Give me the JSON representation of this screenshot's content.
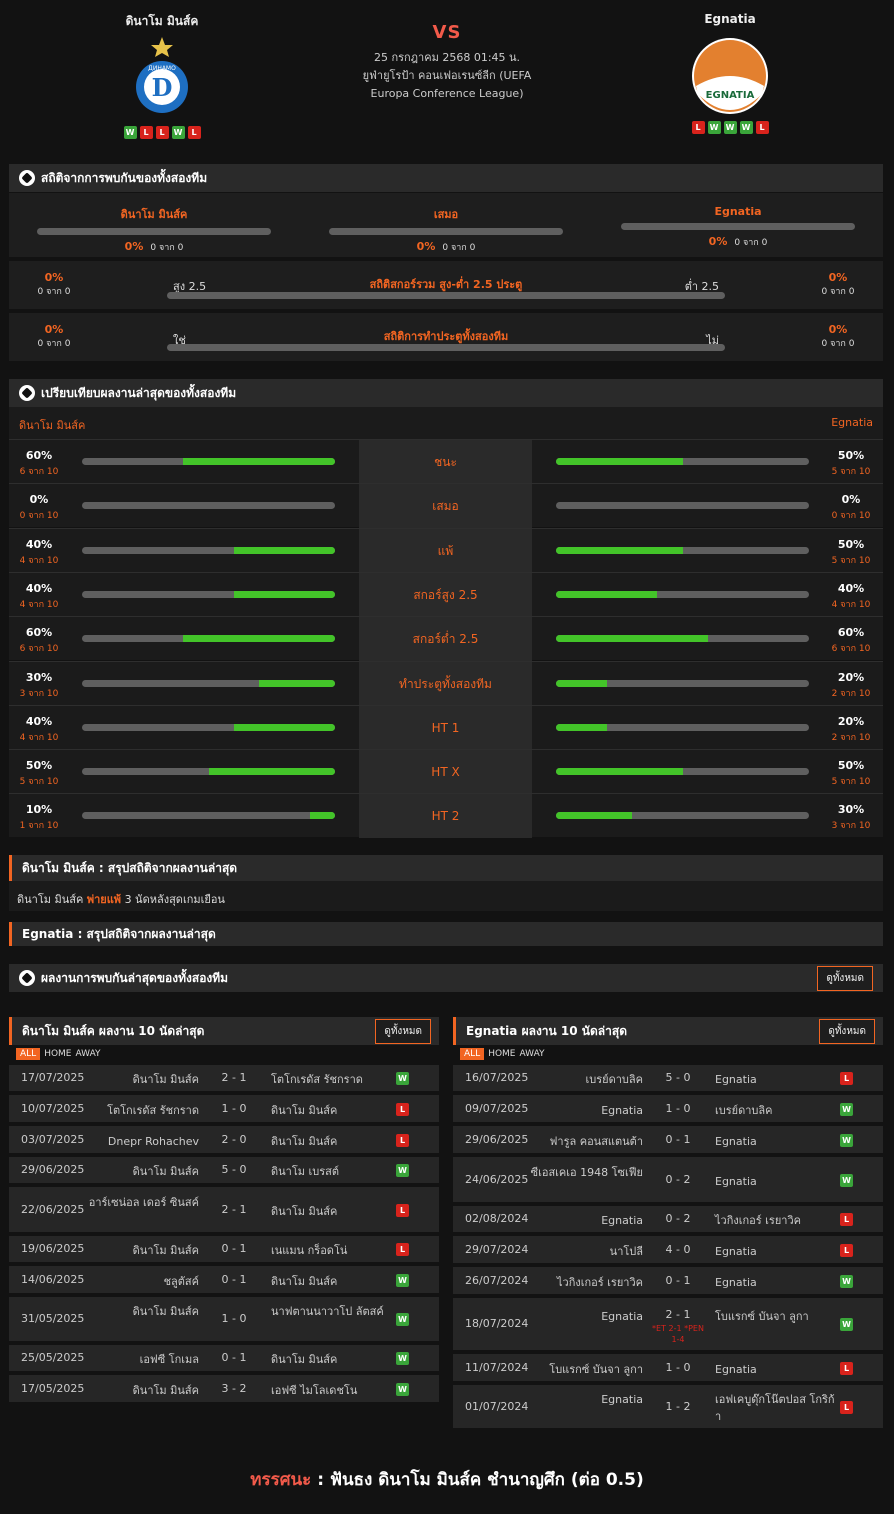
{
  "match": {
    "home": "ดินาโม มินส์ค",
    "away": "Egnatia",
    "vs": "VS",
    "date": "25 กรกฎาคม 2568 01:45 น.",
    "league": "ยูฟ่ายูโรป้า คอนเฟอเรนซ์ลีก (UEFA Europa Conference League)",
    "home_form": [
      "W",
      "L",
      "L",
      "W",
      "L"
    ],
    "away_form": [
      "L",
      "W",
      "W",
      "W",
      "L"
    ],
    "home_logo_text": "ДИНАМО",
    "away_logo_text": "EGNATIA"
  },
  "h2h": {
    "title": "สถิติจากการพบกันของทั้งสองทีม",
    "home": "ดินาโม มินส์ค",
    "draw": "เสมอ",
    "away": "Egnatia",
    "home_pct": "0%",
    "home_of": "0 จาก 0",
    "draw_pct": "0%",
    "draw_of": "0 จาก 0",
    "away_pct": "0%",
    "away_of": "0 จาก 0"
  },
  "ou": {
    "title": "สถิติสกอร์รวม สูง-ต่ำ 2.5 ประตู",
    "left": "สูง 2.5",
    "right": "ต่ำ 2.5",
    "lp": "0%",
    "lo": "0 จาก 0",
    "rp": "0%",
    "ro": "0 จาก 0"
  },
  "btts": {
    "title": "สถิติการทำประตูทั้งสองทีม",
    "left": "ใช่",
    "right": "ไม่",
    "lp": "0%",
    "lo": "0 จาก 0",
    "rp": "0%",
    "ro": "0 จาก 0"
  },
  "compare": {
    "title": "เปรียบเทียบผลงานล่าสุดของทั้งสองทีม",
    "home": "ดินาโม มินส์ค",
    "away": "Egnatia",
    "rows": [
      {
        "label": "ชนะ",
        "hp": "60%",
        "ho": "6 จาก 10",
        "hv": 0.6,
        "ap": "50%",
        "ao": "5 จาก 10",
        "av": 0.5
      },
      {
        "label": "เสมอ",
        "hp": "0%",
        "ho": "0 จาก 10",
        "hv": 0,
        "ap": "0%",
        "ao": "0 จาก 10",
        "av": 0
      },
      {
        "label": "แพ้",
        "hp": "40%",
        "ho": "4 จาก 10",
        "hv": 0.4,
        "ap": "50%",
        "ao": "5 จาก 10",
        "av": 0.5
      },
      {
        "label": "สกอร์สูง 2.5",
        "hp": "40%",
        "ho": "4 จาก 10",
        "hv": 0.4,
        "ap": "40%",
        "ao": "4 จาก 10",
        "av": 0.4
      },
      {
        "label": "สกอร์ต่ำ 2.5",
        "hp": "60%",
        "ho": "6 จาก 10",
        "hv": 0.6,
        "ap": "60%",
        "ao": "6 จาก 10",
        "av": 0.6
      },
      {
        "label": "ทำประตูทั้งสองทีม",
        "hp": "30%",
        "ho": "3 จาก 10",
        "hv": 0.3,
        "ap": "20%",
        "ao": "2 จาก 10",
        "av": 0.2
      },
      {
        "label": "HT 1",
        "hp": "40%",
        "ho": "4 จาก 10",
        "hv": 0.4,
        "ap": "20%",
        "ao": "2 จาก 10",
        "av": 0.2
      },
      {
        "label": "HT X",
        "hp": "50%",
        "ho": "5 จาก 10",
        "hv": 0.5,
        "ap": "50%",
        "ao": "5 จาก 10",
        "av": 0.5
      },
      {
        "label": "HT 2",
        "hp": "10%",
        "ho": "1 จาก 10",
        "hv": 0.1,
        "ap": "30%",
        "ao": "3 จาก 10",
        "av": 0.3
      }
    ]
  },
  "summary_home": {
    "title_team": "ดินาโม มินส์ค",
    "title_rest": ": สรุปสถิติจากผลงานล่าสุด",
    "line_team": "ดินาโม มินส์ค",
    "line_hl": "พ่ายแพ้",
    "line_rest": "3  นัดหลังสุดเกมเยือน"
  },
  "summary_away": {
    "title_team": "Egnatia",
    "title_rest": ": สรุปสถิติจากผลงานล่าสุด"
  },
  "recent": {
    "title": "ผลงานการพบกันล่าสุดของทั้งสองทีม",
    "btn": "ดูทั้งหมด"
  },
  "tabs": [
    "ALL",
    "HOME",
    "AWAY"
  ],
  "home_last": {
    "team": "ดินาโม มินส์ค",
    "title": "ผลงาน 10 นัดล่าสุด",
    "btn": "ดูทั้งหมด",
    "rows": [
      {
        "d": "17/07/2025",
        "h": "ดินาโม มินส์ค",
        "s": "2 - 1",
        "a": "โตโกเรดัส รัชกราด",
        "r": "W"
      },
      {
        "d": "10/07/2025",
        "h": "โตโกเรดัส รัชกราด",
        "s": "1 - 0",
        "a": "ดินาโม มินส์ค",
        "r": "L"
      },
      {
        "d": "03/07/2025",
        "h": "Dnepr Rohachev",
        "s": "2 - 0",
        "a": "ดินาโม มินส์ค",
        "r": "L"
      },
      {
        "d": "29/06/2025",
        "h": "ดินาโม มินส์ค",
        "s": "5 - 0",
        "a": "ดินาโม เบรสต์",
        "r": "W"
      },
      {
        "d": "22/06/2025",
        "h": "อาร์เซน่อล เดอร์ ซินสค์",
        "s": "2 - 1",
        "a": "ดินาโม มินส์ค",
        "r": "L"
      },
      {
        "d": "19/06/2025",
        "h": "ดินาโม มินส์ค",
        "s": "0 - 1",
        "a": "เนแมน กร็อดโน่",
        "r": "L"
      },
      {
        "d": "14/06/2025",
        "h": "ชลูตัสค์",
        "s": "0 - 1",
        "a": "ดินาโม มินส์ค",
        "r": "W"
      },
      {
        "d": "31/05/2025",
        "h": "ดินาโม มินส์ค",
        "s": "1 - 0",
        "a": "นาฟตานนาวาโป ลัตสค์",
        "r": "W"
      },
      {
        "d": "25/05/2025",
        "h": "เอฟซี โกเมล",
        "s": "0 - 1",
        "a": "ดินาโม มินส์ค",
        "r": "W"
      },
      {
        "d": "17/05/2025",
        "h": "ดินาโม มินส์ค",
        "s": "3 - 2",
        "a": "เอฟซี ไมโลเดชโน",
        "r": "W"
      }
    ]
  },
  "away_last": {
    "team": "Egnatia",
    "title": "ผลงาน 10 นัดล่าสุด",
    "btn": "ดูทั้งหมด",
    "rows": [
      {
        "d": "16/07/2025",
        "h": "เบรย์ดาบลิค",
        "s": "5 - 0",
        "a": "Egnatia",
        "r": "L"
      },
      {
        "d": "09/07/2025",
        "h": "Egnatia",
        "s": "1 - 0",
        "a": "เบรย์ดาบลิค",
        "r": "W"
      },
      {
        "d": "29/06/2025",
        "h": "ฟารูล คอนสแตนต้า",
        "s": "0 - 1",
        "a": "Egnatia",
        "r": "W"
      },
      {
        "d": "24/06/2025",
        "h": "ซีเอสเคเอ 1948 โซเฟีย",
        "s": "0 - 2",
        "a": "Egnatia",
        "r": "W"
      },
      {
        "d": "02/08/2024",
        "h": "Egnatia",
        "s": "0 - 2",
        "a": "ไวกิงเกอร์ เรยาวิค",
        "r": "L"
      },
      {
        "d": "29/07/2024",
        "h": "นาโปลี",
        "s": "4 - 0",
        "a": "Egnatia",
        "r": "L"
      },
      {
        "d": "26/07/2024",
        "h": "ไวกิงเกอร์ เรยาวิค",
        "s": "0 - 1",
        "a": "Egnatia",
        "r": "W"
      },
      {
        "d": "18/07/2024",
        "h": "Egnatia",
        "s": "2 - 1",
        "note": "*ET 2-1 *PEN 1-4",
        "a": "โบแรกซ์ บันจา ลูกา",
        "r": "W"
      },
      {
        "d": "11/07/2024",
        "h": "โบแรกซ์ บันจา ลูกา",
        "s": "1 - 0",
        "a": "Egnatia",
        "r": "L"
      },
      {
        "d": "01/07/2024",
        "h": "Egnatia",
        "s": "1 - 2",
        "a": "เอฟเคบูดุ๊กโน๊ตปอส โกริก้า",
        "r": "L"
      }
    ]
  },
  "prediction": {
    "label": "ทรรศนะ",
    "colon": ":",
    "text": "ฟันธง ดินาโม มินส์ค ชำนาญศึก (ต่อ 0.5)"
  },
  "colors": {
    "accent": "#f26522",
    "win": "#3aa53a",
    "loss": "#d8231c",
    "bar": "#43c429"
  }
}
